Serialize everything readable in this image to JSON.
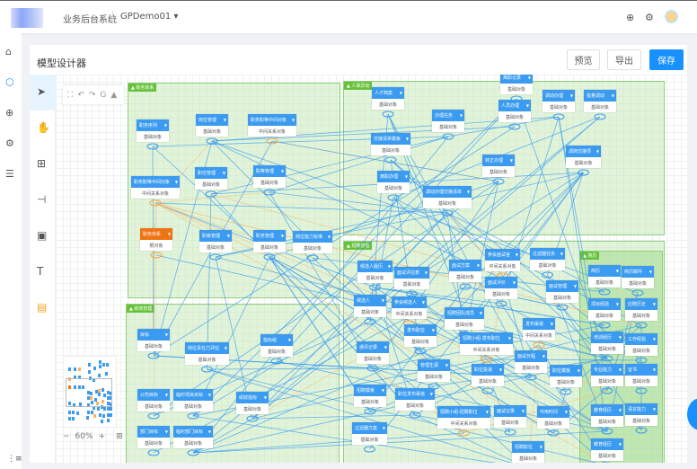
{
  "topbar": {
    "system_name": "业务后台系统",
    "project": "GPDemo01",
    "globe_icon": "globe-icon",
    "settings_icon": "gear-icon"
  },
  "sidebar": {
    "items": [
      {
        "icon": "home-icon",
        "glyph": "⌂"
      },
      {
        "icon": "cube-icon",
        "glyph": "⬡"
      },
      {
        "icon": "globe-icon",
        "glyph": "⊕"
      },
      {
        "icon": "gear-icon",
        "glyph": "⚙"
      },
      {
        "icon": "list-icon",
        "glyph": "☰"
      }
    ],
    "collapse_glyph": "⋮≡"
  },
  "panel": {
    "title": "模型设计器",
    "preview_label": "预览",
    "export_label": "导出",
    "save_label": "保存"
  },
  "tools": [
    {
      "icon": "pointer-icon",
      "glyph": "➤"
    },
    {
      "icon": "hand-icon",
      "glyph": "✋"
    },
    {
      "icon": "add-node-icon",
      "glyph": "⊞"
    },
    {
      "icon": "connector-icon",
      "glyph": "⊣"
    },
    {
      "icon": "frame-icon",
      "glyph": "▣"
    },
    {
      "icon": "text-icon",
      "glyph": "T"
    },
    {
      "icon": "note-icon",
      "glyph": "▤"
    }
  ],
  "canvas_toolbar": [
    "⛶",
    "↶",
    "↷",
    "G",
    "▲"
  ],
  "zoom": {
    "level": "60%",
    "minus": "−",
    "plus": "+",
    "fit": "⊞"
  },
  "colors": {
    "entity": "#3a9bf0",
    "middle": "#fbb45f",
    "root": "#ef7414",
    "group": "#67c23a",
    "primary": "#1890ff",
    "line": "#3a9bf0"
  },
  "groups": [
    {
      "label": "职务体系"
    },
    {
      "label": "绩效管理"
    },
    {
      "label": "人事异动"
    },
    {
      "label": "招聘管理"
    },
    {
      "label": "简历"
    }
  ],
  "nodes": [
    {
      "label": "职务序列",
      "sub": "基础对象",
      "kind": "entity"
    },
    {
      "label": "岗位管理",
      "sub": "基础对象",
      "kind": "entity"
    },
    {
      "label": "职务职等中间对象",
      "sub": "中间关系对象",
      "kind": "middle"
    },
    {
      "label": "职位管理",
      "sub": "基础对象",
      "kind": "entity"
    },
    {
      "label": "职等管理",
      "sub": "基础对象",
      "kind": "entity"
    },
    {
      "label": "职务职等中间对象",
      "sub": "中间关系对象",
      "kind": "middle"
    },
    {
      "label": "职务体系",
      "sub": "根对象",
      "kind": "root"
    },
    {
      "label": "职级管理",
      "sub": "基础对象",
      "kind": "entity"
    },
    {
      "label": "职务管理",
      "sub": "基础对象",
      "kind": "entity"
    },
    {
      "label": "岗位能力标准",
      "sub": "基础对象",
      "kind": "entity"
    },
    {
      "label": "目标",
      "sub": "基础对象",
      "kind": "entity"
    },
    {
      "label": "岗位责任力评估",
      "sub": "基础对象",
      "kind": "entity"
    },
    {
      "label": "指标组",
      "sub": "基础对象",
      "kind": "entity"
    },
    {
      "label": "公司目标",
      "sub": "基础对象",
      "kind": "entity"
    },
    {
      "label": "临时项目目标",
      "sub": "基础对象",
      "kind": "entity"
    },
    {
      "label": "绩效指标",
      "sub": "基础对象",
      "kind": "entity"
    },
    {
      "label": "部门目标",
      "sub": "基础对象",
      "kind": "entity"
    },
    {
      "label": "临时部门目标",
      "sub": "基础对象",
      "kind": "entity"
    },
    {
      "label": "人才档案",
      "sub": "基础对象",
      "kind": "entity"
    },
    {
      "label": "离职记录",
      "sub": "基础对象",
      "kind": "entity"
    },
    {
      "label": "人员办理",
      "sub": "基础对象",
      "kind": "entity"
    },
    {
      "label": "调动办理",
      "sub": "基础对象",
      "kind": "entity"
    },
    {
      "label": "批量调动",
      "sub": "基础对象",
      "kind": "entity"
    },
    {
      "label": "办理任务",
      "sub": "基础对象",
      "kind": "entity"
    },
    {
      "label": "交接清单模板",
      "sub": "基础对象",
      "kind": "entity"
    },
    {
      "label": "转正办理",
      "sub": "基础对象",
      "kind": "entity"
    },
    {
      "label": "调岗交接项",
      "sub": "基础对象",
      "kind": "entity"
    },
    {
      "label": "离职办理",
      "sub": "基础对象",
      "kind": "entity"
    },
    {
      "label": "调动办理交接清单",
      "sub": "基础对象",
      "kind": "entity"
    },
    {
      "label": "候选人履历",
      "sub": "基础对象",
      "kind": "entity"
    },
    {
      "label": "面试评估表",
      "sub": "基础对象",
      "kind": "entity"
    },
    {
      "label": "面试方案",
      "sub": "基础对象",
      "kind": "entity"
    },
    {
      "label": "参会面试官",
      "sub": "中间关系对象",
      "kind": "middle"
    },
    {
      "label": "过滤器任务",
      "sub": "基础对象",
      "kind": "entity"
    },
    {
      "label": "候选人",
      "sub": "基础对象",
      "kind": "entity"
    },
    {
      "label": "面试评价",
      "sub": "基础对象",
      "kind": "entity"
    },
    {
      "label": "面试管理",
      "sub": "基础对象",
      "kind": "entity"
    },
    {
      "label": "参会候选人",
      "sub": "中间关系对象",
      "kind": "middle"
    },
    {
      "label": "招聘团队成员",
      "sub": "基础对象",
      "kind": "entity"
    },
    {
      "label": "发布职位",
      "sub": "基础对象",
      "kind": "entity"
    },
    {
      "label": "招聘小组-发布职位",
      "sub": "中间关系对象",
      "kind": "middle"
    },
    {
      "label": "发布渠道",
      "sub": "中间关系对象",
      "kind": "middle"
    },
    {
      "label": "通讯记录",
      "sub": "基础对象",
      "kind": "entity"
    },
    {
      "label": "面试日程",
      "sub": "基础对象",
      "kind": "entity"
    },
    {
      "label": "管理生源",
      "sub": "基础对象",
      "kind": "entity"
    },
    {
      "label": "职位投递",
      "sub": "基础对象",
      "kind": "entity"
    },
    {
      "label": "职位模板",
      "sub": "基础对象",
      "kind": "entity"
    },
    {
      "label": "招聘模板",
      "sub": "基础对象",
      "kind": "entity"
    },
    {
      "label": "职位发布渠道",
      "sub": "基础对象",
      "kind": "entity"
    },
    {
      "label": "招聘小组-招聘职位",
      "sub": "中间关系对象",
      "kind": "middle"
    },
    {
      "label": "面试记录",
      "sub": "基础对象",
      "kind": "entity"
    },
    {
      "label": "可用时间",
      "sub": "基础对象",
      "kind": "entity"
    },
    {
      "label": "过滤器方案",
      "sub": "基础对象",
      "kind": "entity"
    },
    {
      "label": "招聘职位",
      "sub": "基础对象",
      "kind": "entity"
    },
    {
      "label": "简历",
      "sub": "基础对象",
      "kind": "entity"
    },
    {
      "label": "简历邮件",
      "sub": "基础对象",
      "kind": "entity"
    },
    {
      "label": "项目经验",
      "sub": "基础对象",
      "kind": "entity"
    },
    {
      "label": "应聘历史",
      "sub": "基础对象",
      "kind": "entity"
    },
    {
      "label": "培训经历",
      "sub": "基础对象",
      "kind": "entity"
    },
    {
      "label": "工作经验",
      "sub": "基础对象",
      "kind": "entity"
    },
    {
      "label": "专业能力",
      "sub": "基础对象",
      "kind": "entity"
    },
    {
      "label": "证书",
      "sub": "基础对象",
      "kind": "entity"
    },
    {
      "label": "教育经历",
      "sub": "基础对象",
      "kind": "entity"
    },
    {
      "label": "语言能力",
      "sub": "基础对象",
      "kind": "entity"
    },
    {
      "label": "教育经历",
      "sub": "基础对象",
      "kind": "entity"
    }
  ]
}
